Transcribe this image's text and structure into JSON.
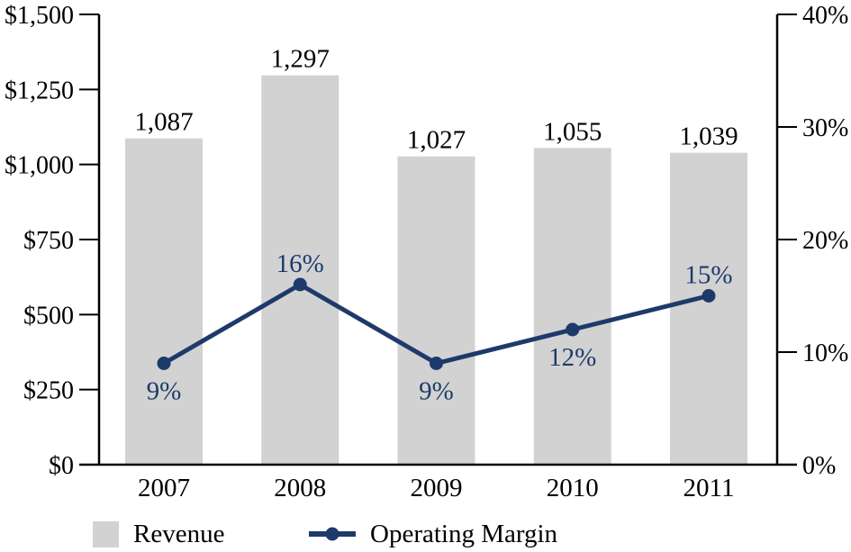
{
  "chart_data": {
    "type": "bar",
    "subtype": "bar-line-combo-dual-axis",
    "categories": [
      "2007",
      "2008",
      "2009",
      "2010",
      "2011"
    ],
    "series": [
      {
        "name": "Revenue",
        "type": "bar",
        "axis": "left",
        "values": [
          1087,
          1297,
          1027,
          1055,
          1039
        ],
        "labels": [
          "1,087",
          "1,297",
          "1,027",
          "1,055",
          "1,039"
        ],
        "color": "#d2d2d2"
      },
      {
        "name": "Operating Margin",
        "type": "line",
        "axis": "right",
        "values": [
          9,
          16,
          9,
          12,
          15
        ],
        "labels": [
          "9%",
          "16%",
          "9%",
          "12%",
          "15%"
        ],
        "label_positions": [
          "below",
          "above",
          "below",
          "below",
          "above"
        ],
        "color": "#1d3a6b"
      }
    ],
    "left_axis": {
      "tick_labels": [
        "$0",
        "$250",
        "$500",
        "$750",
        "$1,000",
        "$1,250",
        "$1,500"
      ],
      "tick_values": [
        0,
        250,
        500,
        750,
        1000,
        1250,
        1500
      ],
      "min": 0,
      "max": 1500
    },
    "right_axis": {
      "tick_labels": [
        "0%",
        "10%",
        "20%",
        "30%",
        "40%"
      ],
      "tick_values": [
        0,
        10,
        20,
        30,
        40
      ],
      "min": 0,
      "max": 40
    },
    "title": "",
    "xlabel": "",
    "ylabel": "",
    "grid": false,
    "legend_position": "bottom",
    "colors": {
      "bar": "#d2d2d2",
      "line": "#1d3a6b",
      "text": "#000000",
      "axis": "#000000"
    }
  }
}
